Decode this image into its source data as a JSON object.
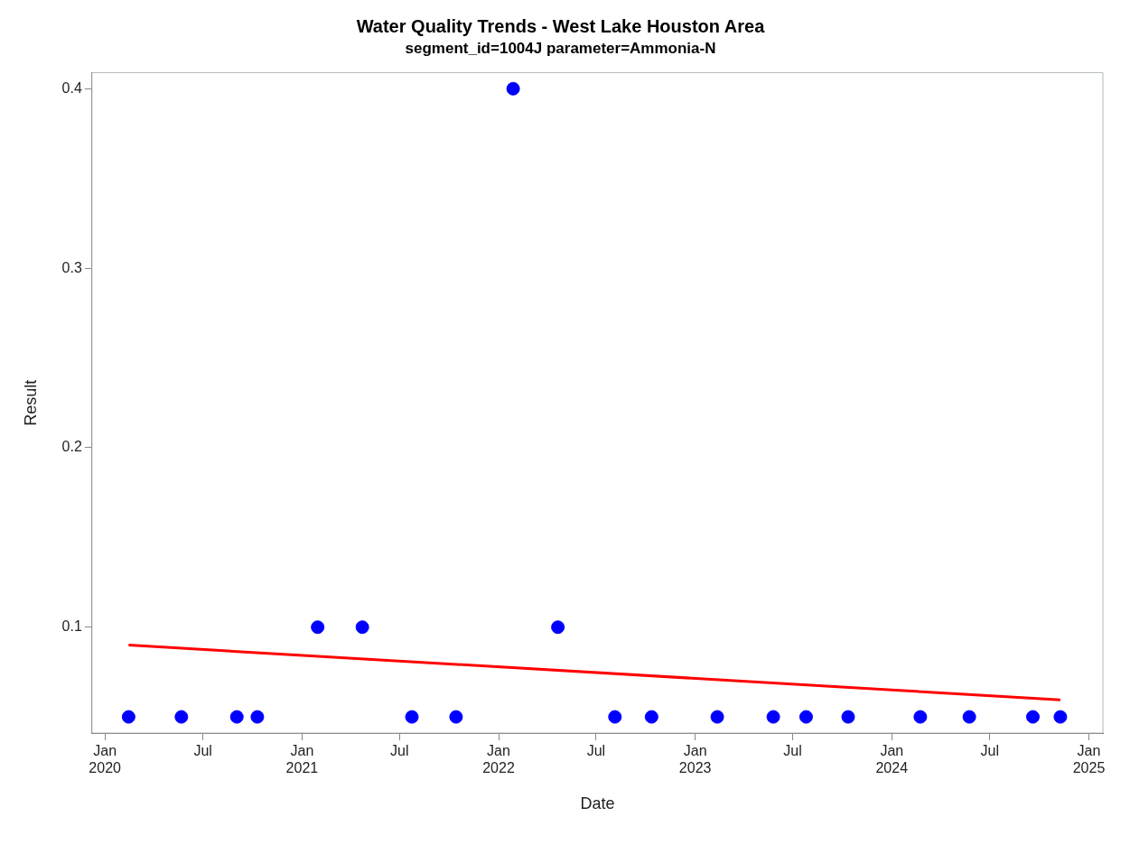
{
  "chart_data": {
    "type": "scatter",
    "title": "Water Quality Trends - West Lake Houston Area",
    "subtitle": "segment_id=1004J parameter=Ammonia-N",
    "xlabel": "Date",
    "ylabel": "Result",
    "series": [
      {
        "marker": "circle",
        "color": "#0000ff",
        "x": [
          "2020-02-14",
          "2020-05-22",
          "2020-09-02",
          "2020-10-10",
          "2021-01-30",
          "2021-04-23",
          "2021-07-24",
          "2021-10-14",
          "2022-01-28",
          "2022-04-21",
          "2022-08-05",
          "2022-10-12",
          "2023-02-11",
          "2023-05-26",
          "2023-07-26",
          "2023-10-12",
          "2024-02-23",
          "2024-05-24",
          "2024-09-19",
          "2024-11-09"
        ],
        "values": [
          0.05,
          0.05,
          0.05,
          0.05,
          0.1,
          0.1,
          0.05,
          0.05,
          0.4,
          0.1,
          0.05,
          0.05,
          0.05,
          0.05,
          0.05,
          0.05,
          0.05,
          0.05,
          0.05,
          0.05
        ]
      },
      {
        "type": "line",
        "color": "#ff0000",
        "x": [
          "2020-02-14",
          "2024-11-09"
        ],
        "values": [
          0.09,
          0.0595
        ]
      }
    ],
    "xlim": [
      "2019-12-08",
      "2025-01-27"
    ],
    "xticks": [
      {
        "value": "2020-01-01",
        "label": "Jan\n2020"
      },
      {
        "value": "2020-07-01",
        "label": "Jul"
      },
      {
        "value": "2021-01-01",
        "label": "Jan\n2021"
      },
      {
        "value": "2021-07-01",
        "label": "Jul"
      },
      {
        "value": "2022-01-01",
        "label": "Jan\n2022"
      },
      {
        "value": "2022-07-01",
        "label": "Jul"
      },
      {
        "value": "2023-01-01",
        "label": "Jan\n2023"
      },
      {
        "value": "2023-07-01",
        "label": "Jul"
      },
      {
        "value": "2024-01-01",
        "label": "Jan\n2024"
      },
      {
        "value": "2024-07-01",
        "label": "Jul"
      },
      {
        "value": "2025-01-01",
        "label": "Jan\n2025"
      }
    ],
    "ylim": [
      0.041,
      0.409
    ],
    "yticks": [
      0.1,
      0.2,
      0.3,
      0.4
    ],
    "grid": false,
    "legend": false,
    "line_style": "solid"
  }
}
